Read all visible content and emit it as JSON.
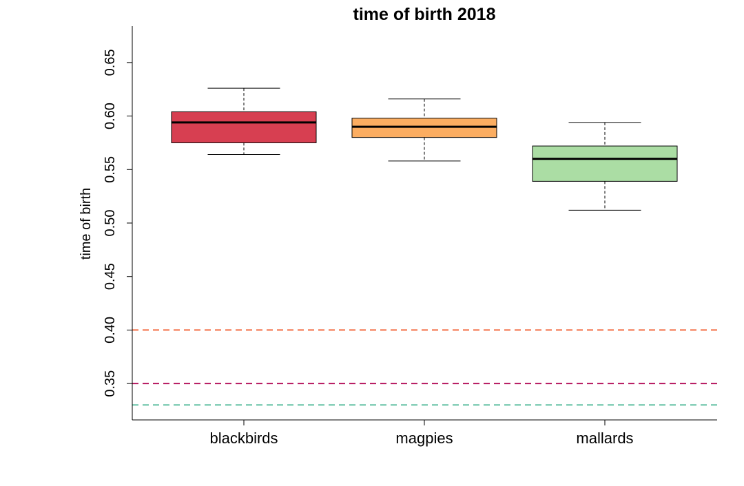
{
  "chart_data": {
    "type": "box",
    "title": "time of birth 2018",
    "xlabel": "",
    "ylabel": "time of birth",
    "ylim": [
      0.316,
      0.684
    ],
    "yticks": [
      "0.35",
      "0.40",
      "0.45",
      "0.50",
      "0.55",
      "0.60",
      "0.65"
    ],
    "grid": false,
    "categories": [
      "blackbirds",
      "magpies",
      "mallards"
    ],
    "boxes": [
      {
        "category": "blackbirds",
        "color": "#d73f51",
        "whisker_low": 0.564,
        "q1": 0.575,
        "median": 0.594,
        "q3": 0.604,
        "whisker_high": 0.626
      },
      {
        "category": "magpies",
        "color": "#fbad61",
        "whisker_low": 0.558,
        "q1": 0.58,
        "median": 0.59,
        "q3": 0.598,
        "whisker_high": 0.616
      },
      {
        "category": "mallards",
        "color": "#abdda4",
        "whisker_low": 0.512,
        "q1": 0.539,
        "median": 0.56,
        "q3": 0.572,
        "whisker_high": 0.594
      }
    ],
    "reference_lines": [
      {
        "y": 0.4,
        "color": "#f46d43",
        "style": "dashed"
      },
      {
        "y": 0.35,
        "color": "#b5145e",
        "style": "dashed"
      },
      {
        "y": 0.33,
        "color": "#66c2a5",
        "style": "dashed"
      }
    ]
  }
}
